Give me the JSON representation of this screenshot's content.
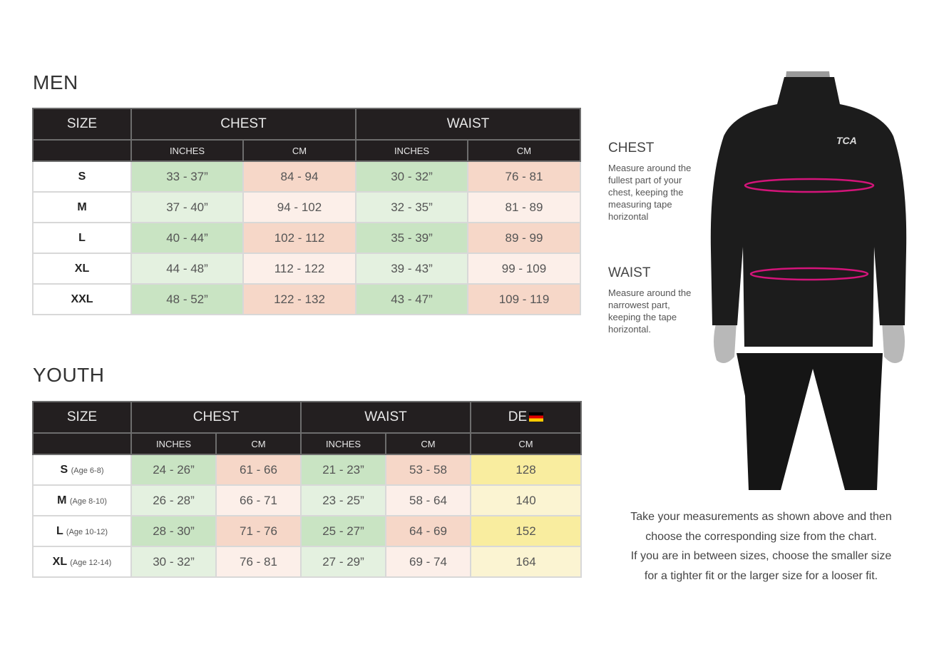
{
  "men": {
    "title": "MEN",
    "headers": {
      "size": "SIZE",
      "chest": "CHEST",
      "waist": "WAIST",
      "inches": "INCHES",
      "cm": "CM"
    },
    "rows": [
      {
        "size": "S",
        "chest_in": "33 - 37”",
        "chest_cm": "84 - 94",
        "waist_in": "30 - 32”",
        "waist_cm": "76 - 81"
      },
      {
        "size": "M",
        "chest_in": "37 - 40”",
        "chest_cm": "94 - 102",
        "waist_in": "32 - 35”",
        "waist_cm": "81 - 89"
      },
      {
        "size": "L",
        "chest_in": "40 - 44”",
        "chest_cm": "102 - 112",
        "waist_in": "35 - 39”",
        "waist_cm": "89 - 99"
      },
      {
        "size": "XL",
        "chest_in": "44 - 48”",
        "chest_cm": "112 - 122",
        "waist_in": "39 - 43”",
        "waist_cm": "99 - 109"
      },
      {
        "size": "XXL",
        "chest_in": "48 - 52”",
        "chest_cm": "122 - 132",
        "waist_in": "43 - 47”",
        "waist_cm": "109 - 119"
      }
    ]
  },
  "youth": {
    "title": "YOUTH",
    "headers": {
      "size": "SIZE",
      "chest": "CHEST",
      "waist": "WAIST",
      "de": "DE",
      "inches": "INCHES",
      "cm": "CM"
    },
    "rows": [
      {
        "size": "S",
        "age": "(Age 6-8)",
        "chest_in": "24 - 26”",
        "chest_cm": "61 - 66",
        "waist_in": "21 - 23”",
        "waist_cm": "53 - 58",
        "de_cm": "128"
      },
      {
        "size": "M",
        "age": "(Age 8-10)",
        "chest_in": "26 - 28”",
        "chest_cm": "66 - 71",
        "waist_in": "23 - 25”",
        "waist_cm": "58 - 64",
        "de_cm": "140"
      },
      {
        "size": "L",
        "age": "(Age 10-12)",
        "chest_in": "28 - 30”",
        "chest_cm": "71 - 76",
        "waist_in": "25 - 27”",
        "waist_cm": "64 - 69",
        "de_cm": "152"
      },
      {
        "size": "XL",
        "age": "(Age 12-14)",
        "chest_in": "30 - 32”",
        "chest_cm": "76 - 81",
        "waist_in": "27 - 29”",
        "waist_cm": "69 - 74",
        "de_cm": "164"
      }
    ]
  },
  "guide": {
    "chest_title": "CHEST",
    "chest_text": "Measure around the fullest part of your chest, keeping the measuring tape horizontal",
    "waist_title": "WAIST",
    "waist_text": "Measure around the narrowest part, keeping the tape horizontal.",
    "logo": "TCA",
    "tape_color": "#d4147a",
    "note_lines": [
      "Take your measurements as shown above and then",
      "choose the corresponding size from the chart.",
      "If you are in between sizes, choose the smaller size",
      "for a tighter fit or the larger size for a looser fit."
    ]
  },
  "icons": {
    "de_flag": "germany-flag-icon"
  }
}
